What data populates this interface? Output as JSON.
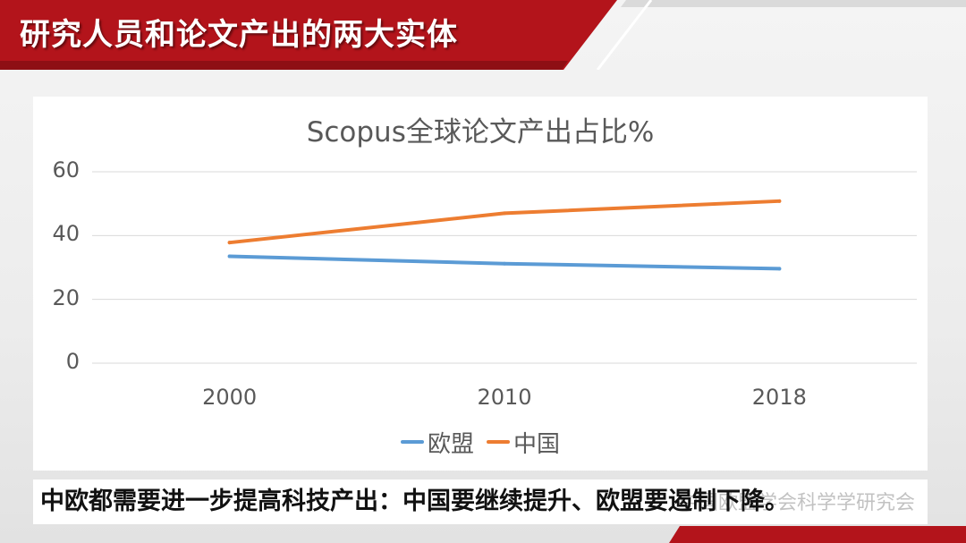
{
  "slide": {
    "title": "研究人员和论文产出的两大实体",
    "caption": "中欧都需要进一步提高科技产出：中国要继续提升、欧盟要遏制下降。",
    "watermark": "中国欧盟学会科学学研究会"
  },
  "colors": {
    "banner": "#b3141b",
    "banner_dark": "#8e0f14",
    "series_eu": "#5b9bd5",
    "series_cn": "#ed7d31",
    "grid": "#d9d9d9",
    "text": "#595959"
  },
  "chart_data": {
    "type": "line",
    "title": "Scopus全球论文产出占比%",
    "xlabel": "",
    "ylabel": "",
    "categories": [
      "2000",
      "2010",
      "2018"
    ],
    "series": [
      {
        "name": "欧盟",
        "values": [
          33.5,
          31.2,
          29.6
        ]
      },
      {
        "name": "中国",
        "values": [
          37.8,
          47.0,
          50.8
        ]
      }
    ],
    "ylim": [
      0,
      60
    ],
    "yticks": [
      "0",
      "20",
      "40",
      "60"
    ],
    "grid": true,
    "legend_position": "bottom"
  }
}
